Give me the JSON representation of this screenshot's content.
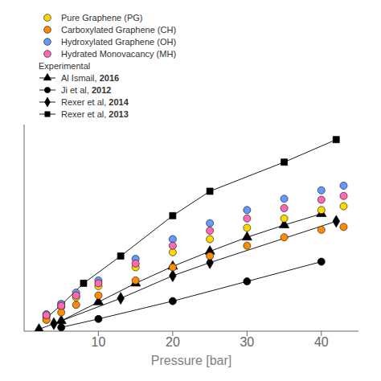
{
  "chart_data": {
    "type": "scatter",
    "xlabel": "Pressure [bar]",
    "xlim": [
      0,
      45
    ],
    "ylim": [
      0,
      1.1
    ],
    "xticks": [
      10,
      20,
      30,
      40
    ],
    "tick_labels": "x",
    "grid": false,
    "legend": "top",
    "annotations": [
      "Experimental"
    ],
    "series": [
      {
        "name": "Pure Graphene (PG)",
        "type": "scatter",
        "marker": "circle",
        "color": "#FFD700",
        "x": [
          3,
          5,
          7,
          10,
          15,
          20,
          25,
          30,
          35,
          40,
          43
        ],
        "values": [
          0.08,
          0.13,
          0.18,
          0.24,
          0.34,
          0.42,
          0.49,
          0.55,
          0.6,
          0.645,
          0.665
        ]
      },
      {
        "name": "Carboxylated Graphene (CH)",
        "type": "scatter",
        "marker": "circle",
        "color": "#FF8C00",
        "x": [
          3,
          5,
          7,
          10,
          15,
          20,
          25,
          30,
          35,
          40,
          43
        ],
        "values": [
          0.06,
          0.1,
          0.14,
          0.19,
          0.27,
          0.34,
          0.4,
          0.455,
          0.5,
          0.54,
          0.555
        ]
      },
      {
        "name": "Hydroxylated Graphene (OH)",
        "type": "scatter",
        "marker": "circle",
        "color": "#6699FF",
        "x": [
          3,
          5,
          7,
          10,
          15,
          20,
          25,
          30,
          35,
          40,
          43
        ],
        "values": [
          0.09,
          0.145,
          0.205,
          0.27,
          0.385,
          0.49,
          0.575,
          0.645,
          0.705,
          0.75,
          0.775
        ]
      },
      {
        "name": "Hydrated Monovacancy (MH)",
        "type": "scatter",
        "marker": "circle",
        "color": "#FF69B4",
        "x": [
          3,
          5,
          7,
          10,
          15,
          20,
          25,
          30,
          35,
          40,
          43
        ],
        "values": [
          0.085,
          0.135,
          0.19,
          0.255,
          0.36,
          0.455,
          0.535,
          0.6,
          0.655,
          0.7,
          0.72
        ]
      },
      {
        "name": "Al Ismail, 2016",
        "type": "line",
        "marker": "triangle",
        "color": "black",
        "x": [
          2,
          5,
          10,
          15,
          20,
          25,
          30,
          35,
          40
        ],
        "values": [
          0.01,
          0.055,
          0.155,
          0.255,
          0.345,
          0.425,
          0.5,
          0.565,
          0.625
        ]
      },
      {
        "name": "Ji et al, 2012",
        "type": "line",
        "marker": "circle",
        "color": "black",
        "x": [
          5,
          10,
          20,
          30,
          40
        ],
        "values": [
          0.02,
          0.065,
          0.16,
          0.265,
          0.37
        ]
      },
      {
        "name": "Rexer et al, 2014",
        "type": "line",
        "marker": "diamond",
        "color": "black",
        "x": [
          4,
          13,
          20,
          25,
          42
        ],
        "values": [
          0.04,
          0.175,
          0.295,
          0.365,
          0.585
        ]
      },
      {
        "name": "Rexer et al, 2013",
        "type": "line",
        "marker": "square",
        "color": "black",
        "x": [
          3,
          5,
          8,
          13,
          20,
          25,
          35,
          42
        ],
        "values": [
          0.07,
          0.14,
          0.255,
          0.4,
          0.615,
          0.745,
          0.9,
          1.02
        ]
      }
    ]
  }
}
